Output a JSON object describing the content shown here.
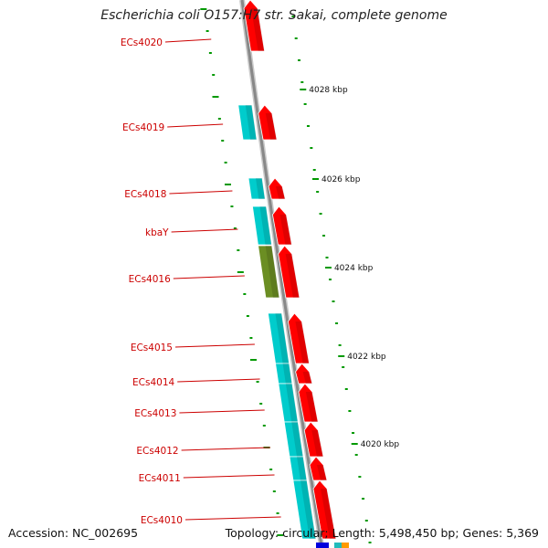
{
  "title": "Escherichia coli O157:H7 str. Sakai, complete genome",
  "footer": {
    "accession": "Accession: NC_002695",
    "topology": "Topology: circular; Length: 5,498,450 bp; Genes: 5,369"
  },
  "colors": {
    "gene_label": "#cc0000",
    "forward_cds": "#ff0000",
    "reverse_cds": "#00cccc",
    "rna_gene": "#6b8e23",
    "tick_mark": "#009900",
    "backbone": "#888888"
  },
  "gene_labels": [
    "ECs4020",
    "ECs4019",
    "ECs4018",
    "kbaY",
    "ECs4016",
    "ECs4015",
    "ECs4014",
    "ECs4013",
    "ECs4012",
    "ECs4011",
    "ECs4010"
  ],
  "ruler_labels": [
    "4028 kbp",
    "4026 kbp",
    "4024 kbp",
    "4022 kbp",
    "4020 kbp"
  ]
}
